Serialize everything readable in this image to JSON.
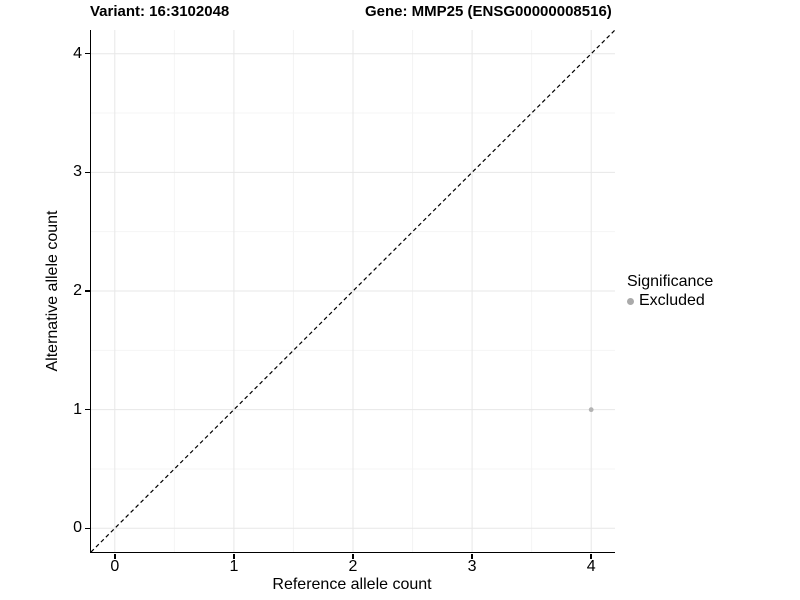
{
  "chart_data": {
    "type": "scatter",
    "titles": {
      "left": "Variant: 16:3102048",
      "right": "Gene: MMP25 (ENSG00000008516)"
    },
    "xlabel": "Reference allele count",
    "ylabel": "Alternative allele count",
    "xlim": [
      -0.2,
      4.2
    ],
    "ylim": [
      -0.2,
      4.2
    ],
    "xticks": [
      0,
      1,
      2,
      3,
      4
    ],
    "yticks": [
      0,
      1,
      2,
      3,
      4
    ],
    "minor_xticks": [
      0.5,
      1.5,
      2.5,
      3.5
    ],
    "minor_yticks": [
      0.5,
      1.5,
      2.5,
      3.5
    ],
    "grid": {
      "major_color": "#e7e7e7",
      "minor_color": "#f4f4f4"
    },
    "reference_line": {
      "kind": "identity",
      "slope": 1,
      "intercept": 0,
      "style": "dashed",
      "color": "#000000"
    },
    "series": [
      {
        "name": "Excluded",
        "color": "#b3b3b3",
        "points": [
          {
            "x": 4,
            "y": 1
          }
        ]
      }
    ],
    "legend": {
      "title": "Significance",
      "position": "right",
      "items": [
        {
          "label": "Excluded",
          "color": "#aaaaaa"
        }
      ]
    }
  }
}
